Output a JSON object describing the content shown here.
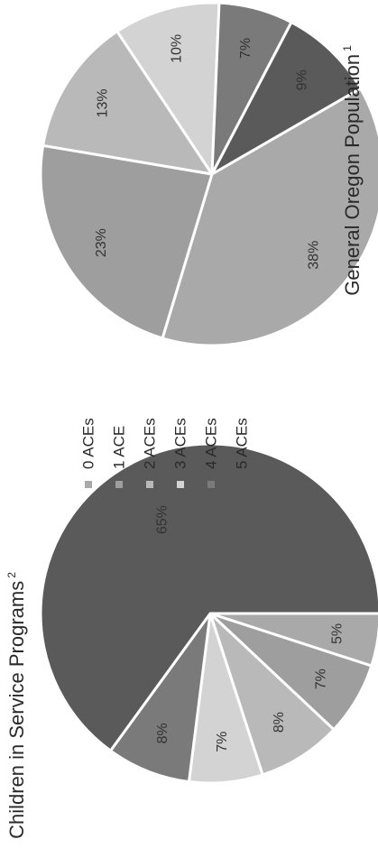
{
  "legend": {
    "items": [
      {
        "label": "0 ACEs",
        "color": "#a9a9a9"
      },
      {
        "label": "1 ACE",
        "color": "#9e9e9e"
      },
      {
        "label": "2 ACEs",
        "color": "#b9b9b9"
      },
      {
        "label": "3 ACEs",
        "color": "#d3d3d3"
      },
      {
        "label": "4 ACEs",
        "color": "#7a7a7a"
      },
      {
        "label": "5 ACEs",
        "color": "#5a5a5a"
      }
    ]
  },
  "chart_data": [
    {
      "type": "pie",
      "title": "Children  in Service Programs",
      "footnote": "2",
      "categories": [
        "0 ACEs",
        "1 ACE",
        "2 ACEs",
        "3 ACEs",
        "4 ACEs",
        "5 ACEs"
      ],
      "values": [
        5,
        7,
        8,
        7,
        8,
        65
      ],
      "labels": [
        "5%",
        "7%",
        "8%",
        "7%",
        "8%",
        "65%"
      ],
      "colors": [
        "#a9a9a9",
        "#9e9e9e",
        "#b9b9b9",
        "#d3d3d3",
        "#7a7a7a",
        "#5a5a5a"
      ]
    },
    {
      "type": "pie",
      "title": "General Oregon Population",
      "footnote": "1",
      "categories": [
        "0 ACEs",
        "1 ACE",
        "2 ACEs",
        "3 ACEs",
        "4 ACEs",
        "5 ACEs"
      ],
      "values": [
        38,
        23,
        13,
        10,
        7,
        9
      ],
      "labels": [
        "38%",
        "23%",
        "13%",
        "10%",
        "7%",
        "9%"
      ],
      "colors": [
        "#a9a9a9",
        "#9e9e9e",
        "#b9b9b9",
        "#d3d3d3",
        "#7a7a7a",
        "#5a5a5a"
      ]
    }
  ]
}
